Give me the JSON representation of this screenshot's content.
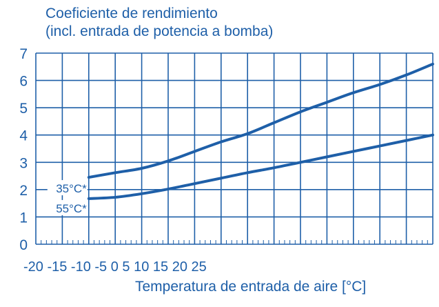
{
  "chart_data": {
    "type": "line",
    "title": "Coeficiente de rendimiento",
    "subtitle": "(incl. entrada de potencia a bomba)",
    "xlabel": "Temperatura de entrada de aire [°C]",
    "ylabel": "",
    "ylim": [
      0,
      7
    ],
    "yticks": [
      "0",
      "1",
      "2",
      "3",
      "4",
      "5",
      "6",
      "7"
    ],
    "xtick_text": "-20 -15 -10 -5 0 5 10 15 20 25",
    "grid": true,
    "legend": "none",
    "series": [
      {
        "name": "35°C*",
        "color": "#1e5fa8",
        "points": [
          [
            -10,
            2.45
          ],
          [
            -5,
            2.62
          ],
          [
            0,
            2.78
          ],
          [
            5,
            3.05
          ],
          [
            10,
            3.4
          ],
          [
            15,
            3.75
          ],
          [
            20,
            4.05
          ],
          [
            25,
            4.45
          ],
          [
            30,
            4.85
          ],
          [
            35,
            5.2
          ],
          [
            40,
            5.55
          ],
          [
            45,
            5.85
          ],
          [
            50,
            6.2
          ],
          [
            55,
            6.6
          ]
        ]
      },
      {
        "name": "55°C*",
        "color": "#1e5fa8",
        "points": [
          [
            -10,
            1.67
          ],
          [
            -5,
            1.72
          ],
          [
            0,
            1.85
          ],
          [
            5,
            2.02
          ],
          [
            10,
            2.22
          ],
          [
            15,
            2.42
          ],
          [
            20,
            2.62
          ],
          [
            25,
            2.8
          ],
          [
            30,
            3.0
          ],
          [
            35,
            3.2
          ],
          [
            40,
            3.4
          ],
          [
            45,
            3.6
          ],
          [
            50,
            3.8
          ],
          [
            55,
            4.0
          ]
        ]
      }
    ]
  }
}
